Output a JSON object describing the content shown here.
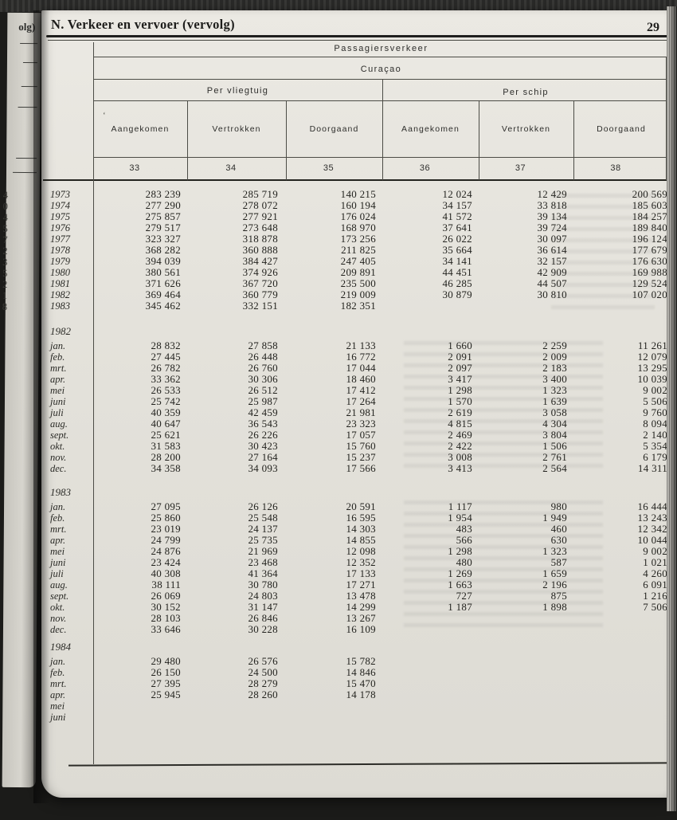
{
  "page": {
    "section_title": "N. Verkeer en vervoer (vervolg)",
    "page_number": "29"
  },
  "margin": {
    "prev_page_fragment": "olg)",
    "edge_digits": [
      "4",
      "0",
      "4",
      "5",
      "7",
      "2",
      "3",
      "5",
      "2",
      "1",
      "8"
    ]
  },
  "table": {
    "title": "Passagiersverkeer",
    "subtitle": "Curaçao",
    "groups": [
      "Per vliegtuig",
      "Per schip"
    ],
    "columns": [
      "Aangekomen",
      "Vertrokken",
      "Doorgaand",
      "Aangekomen",
      "Vertrokken",
      "Doorgaand"
    ],
    "column_numbers": [
      "33",
      "34",
      "35",
      "36",
      "37",
      "38"
    ],
    "sections": [
      {
        "heading": null,
        "rows": [
          {
            "label": "1973",
            "values": [
              "283 239",
              "285 719",
              "140 215",
              "12 024",
              "12 429",
              "200 569"
            ]
          },
          {
            "label": "1974",
            "values": [
              "277 290",
              "278 072",
              "160 194",
              "34 157",
              "33 818",
              "185 603"
            ]
          },
          {
            "label": "1975",
            "values": [
              "275 857",
              "277 921",
              "176 024",
              "41 572",
              "39 134",
              "184 257"
            ]
          },
          {
            "label": "1976",
            "values": [
              "279 517",
              "273 648",
              "168 970",
              "37 641",
              "39 724",
              "189 840"
            ]
          },
          {
            "label": "1977",
            "values": [
              "323 327",
              "318 878",
              "173 256",
              "26 022",
              "30 097",
              "196 124"
            ]
          },
          {
            "label": "1978",
            "values": [
              "368 282",
              "360 888",
              "211 825",
              "35 664",
              "36 614",
              "177 679"
            ]
          },
          {
            "label": "1979",
            "values": [
              "394 039",
              "384 427",
              "247 405",
              "34 141",
              "32 157",
              "176 630"
            ]
          },
          {
            "label": "1980",
            "values": [
              "380 561",
              "374 926",
              "209 891",
              "44 451",
              "42 909",
              "169 988"
            ]
          },
          {
            "label": "1981",
            "values": [
              "371 626",
              "367 720",
              "235 500",
              "46 285",
              "44 507",
              "129 524"
            ]
          },
          {
            "label": "1982",
            "values": [
              "369 464",
              "360 779",
              "219 009",
              "30 879",
              "30 810",
              "107 020"
            ]
          },
          {
            "label": "1983",
            "values": [
              "345 462",
              "332 151",
              "182 351",
              "",
              "",
              ""
            ]
          }
        ]
      },
      {
        "heading": "1982",
        "rows": [
          {
            "label": "jan.",
            "values": [
              "28 832",
              "27 858",
              "21 133",
              "1 660",
              "2 259",
              "11 261"
            ]
          },
          {
            "label": "feb.",
            "values": [
              "27 445",
              "26 448",
              "16 772",
              "2 091",
              "2 009",
              "12 079"
            ]
          },
          {
            "label": "mrt.",
            "values": [
              "26 782",
              "26 760",
              "17 044",
              "2 097",
              "2 183",
              "13 295"
            ]
          },
          {
            "label": "apr.",
            "values": [
              "33 362",
              "30 306",
              "18 460",
              "3 417",
              "3 400",
              "10 039"
            ]
          },
          {
            "label": "mei",
            "values": [
              "26 533",
              "26 512",
              "17 412",
              "1 298",
              "1 323",
              "9 002"
            ]
          },
          {
            "label": "juni",
            "values": [
              "25 742",
              "25 987",
              "17 264",
              "1 570",
              "1 639",
              "5 506"
            ]
          },
          {
            "label": "juli",
            "values": [
              "40 359",
              "42 459",
              "21 981",
              "2 619",
              "3 058",
              "9 760"
            ]
          },
          {
            "label": "aug.",
            "values": [
              "40 647",
              "36 543",
              "23 323",
              "4 815",
              "4 304",
              "8 094"
            ]
          },
          {
            "label": "sept.",
            "values": [
              "25 621",
              "26 226",
              "17 057",
              "2 469",
              "3 804",
              "2 140"
            ]
          },
          {
            "label": "okt.",
            "values": [
              "31 583",
              "30 423",
              "15 760",
              "2 422",
              "1 506",
              "5 354"
            ]
          },
          {
            "label": "nov.",
            "values": [
              "28 200",
              "27 164",
              "15 237",
              "3 008",
              "2 761",
              "6 179"
            ]
          },
          {
            "label": "dec.",
            "values": [
              "34 358",
              "34 093",
              "17 566",
              "3 413",
              "2 564",
              "14 311"
            ]
          }
        ]
      },
      {
        "heading": "1983",
        "rows": [
          {
            "label": "jan.",
            "values": [
              "27 095",
              "26 126",
              "20 591",
              "1 117",
              "980",
              "16 444"
            ]
          },
          {
            "label": "feb.",
            "values": [
              "25 860",
              "25 548",
              "16 595",
              "1 954",
              "1 949",
              "13 243"
            ]
          },
          {
            "label": "mrt.",
            "values": [
              "23 019",
              "24 137",
              "14 303",
              "483",
              "460",
              "12 342"
            ]
          },
          {
            "label": "apr.",
            "values": [
              "24 799",
              "25 735",
              "14 855",
              "566",
              "630",
              "10 044"
            ]
          },
          {
            "label": "mei",
            "values": [
              "24 876",
              "21 969",
              "12 098",
              "1 298",
              "1 323",
              "9 002"
            ]
          },
          {
            "label": "juni",
            "values": [
              "23 424",
              "23 468",
              "12 352",
              "480",
              "587",
              "1 021"
            ]
          },
          {
            "label": "juli",
            "values": [
              "40 308",
              "41 364",
              "17 133",
              "1 269",
              "1 659",
              "4 260"
            ]
          },
          {
            "label": "aug.",
            "values": [
              "38 111",
              "30 780",
              "17 271",
              "1 663",
              "2 196",
              "6 091"
            ]
          },
          {
            "label": "sept.",
            "values": [
              "26 069",
              "24 803",
              "13 478",
              "727",
              "875",
              "1 216"
            ]
          },
          {
            "label": "okt.",
            "values": [
              "30 152",
              "31 147",
              "14 299",
              "1 187",
              "1 898",
              "7 506"
            ]
          },
          {
            "label": "nov.",
            "values": [
              "28 103",
              "26 846",
              "13 267",
              "",
              "",
              ""
            ]
          },
          {
            "label": "dec.",
            "values": [
              "33 646",
              "30 228",
              "16 109",
              "",
              "",
              ""
            ]
          }
        ]
      },
      {
        "heading": "1984",
        "rows": [
          {
            "label": "jan.",
            "values": [
              "29 480",
              "26 576",
              "15 782",
              "",
              "",
              ""
            ]
          },
          {
            "label": "feb.",
            "values": [
              "26 150",
              "24 500",
              "14 846",
              "",
              "",
              ""
            ]
          },
          {
            "label": "mrt.",
            "values": [
              "27 395",
              "28 279",
              "15 470",
              "",
              "",
              ""
            ]
          },
          {
            "label": "apr.",
            "values": [
              "25 945",
              "28 260",
              "14 178",
              "",
              "",
              ""
            ]
          },
          {
            "label": "mei",
            "values": [
              "",
              "",
              "",
              "",
              "",
              ""
            ]
          },
          {
            "label": "juni",
            "values": [
              "",
              "",
              "",
              "",
              "",
              ""
            ]
          }
        ]
      }
    ]
  }
}
